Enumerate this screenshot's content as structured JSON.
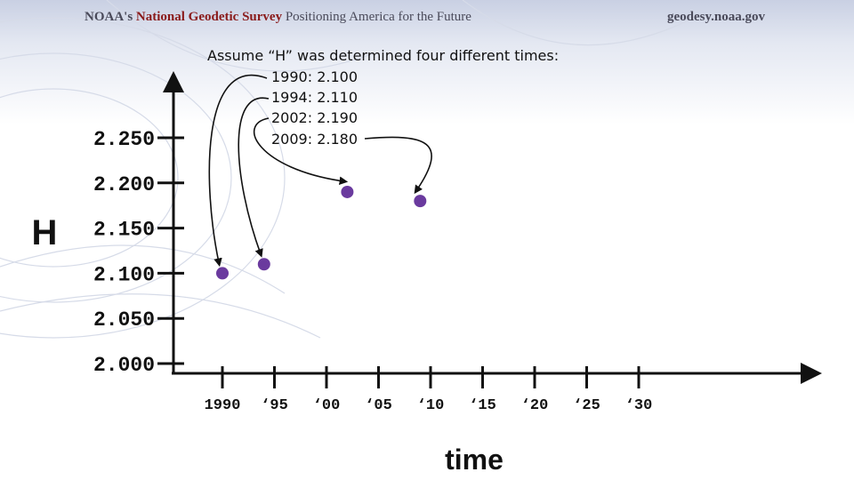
{
  "header": {
    "agency": "NOAA's",
    "survey": "National Geodetic Survey",
    "tagline": "Positioning America for the Future",
    "website": "geodesy.noaa.gov"
  },
  "colors": {
    "point": "#6a3a9e",
    "axis": "#111111",
    "header_accent": "#8a1b1b"
  },
  "annotation": {
    "title": "Assume “H” was determined four different times:",
    "lines": [
      "1990:  2.100",
      "1994:  2.110",
      "2002:  2.190",
      "2009:  2.180"
    ]
  },
  "chart_data": {
    "type": "scatter",
    "title": "",
    "xlabel": "time",
    "ylabel": "H",
    "x_ticks": [
      {
        "value": 1990,
        "label": "1990"
      },
      {
        "value": 1995,
        "label": "‘95"
      },
      {
        "value": 2000,
        "label": "‘00"
      },
      {
        "value": 2005,
        "label": "‘05"
      },
      {
        "value": 2010,
        "label": "‘10"
      },
      {
        "value": 2015,
        "label": "‘15"
      },
      {
        "value": 2020,
        "label": "‘20"
      },
      {
        "value": 2025,
        "label": "‘25"
      },
      {
        "value": 2030,
        "label": "‘30"
      }
    ],
    "y_ticks": [
      {
        "value": 2.0,
        "label": "2.000"
      },
      {
        "value": 2.05,
        "label": "2.050"
      },
      {
        "value": 2.1,
        "label": "2.100"
      },
      {
        "value": 2.15,
        "label": "2.150"
      },
      {
        "value": 2.2,
        "label": "2.200"
      },
      {
        "value": 2.25,
        "label": "2.250"
      }
    ],
    "points": [
      {
        "x": 1990,
        "y": 2.1
      },
      {
        "x": 1994,
        "y": 2.11
      },
      {
        "x": 2002,
        "y": 2.19
      },
      {
        "x": 2009,
        "y": 2.18
      }
    ],
    "xlim": [
      1990,
      2030
    ],
    "ylim": [
      2.0,
      2.25
    ],
    "grid": false,
    "legend": "none"
  }
}
